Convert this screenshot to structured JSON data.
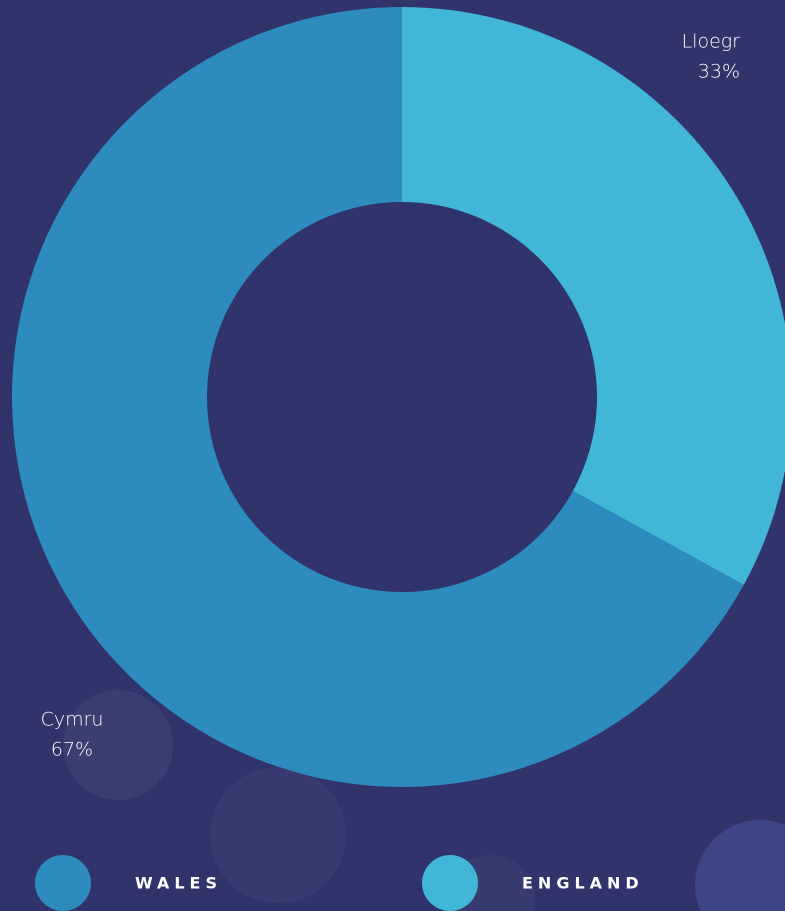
{
  "chart_data": {
    "type": "donut",
    "categories": [
      "Lloegr",
      "Cymru"
    ],
    "values": [
      33,
      67
    ],
    "value_labels": [
      "33%",
      "67%"
    ],
    "colors": [
      "#41b6d6",
      "#2d8bbd"
    ],
    "legend": [
      {
        "name": "WALES",
        "color": "#2d8bbd"
      },
      {
        "name": "ENGLAND",
        "color": "#41b6d6"
      }
    ]
  }
}
